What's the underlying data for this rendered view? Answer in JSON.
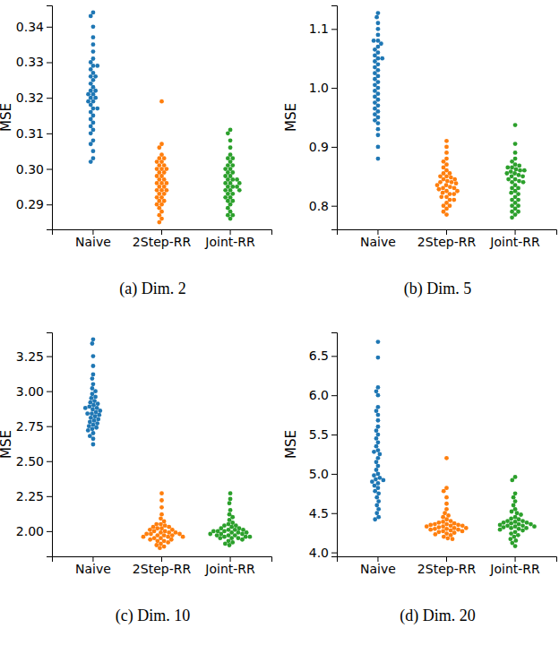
{
  "chart_data": [
    {
      "type": "swarm",
      "title": "(a) Dim. 2",
      "y_label": "MSE",
      "ylim": [
        0.283,
        0.346
      ],
      "yticks": [
        0.29,
        {
          "value": 0.3,
          "label": "0.30"
        },
        0.31,
        0.32,
        0.33,
        0.34
      ],
      "series": [
        {
          "name": "Naive",
          "color": "#1f77b4",
          "values": [
            0.344,
            0.343,
            0.34,
            0.337,
            0.335,
            0.333,
            0.331,
            0.33,
            0.329,
            0.329,
            0.328,
            0.327,
            0.326,
            0.326,
            0.325,
            0.324,
            0.323,
            0.322,
            0.321,
            0.321,
            0.32,
            0.32,
            0.319,
            0.319,
            0.318,
            0.317,
            0.317,
            0.316,
            0.315,
            0.314,
            0.313,
            0.312,
            0.311,
            0.31,
            0.308,
            0.307,
            0.305,
            0.303,
            0.302,
            0.322
          ]
        },
        {
          "name": "2Step-RR",
          "color": "#ff7f0e",
          "values": [
            0.319,
            0.307,
            0.306,
            0.304,
            0.303,
            0.302,
            0.302,
            0.301,
            0.301,
            0.3,
            0.3,
            0.299,
            0.299,
            0.298,
            0.297,
            0.297,
            0.296,
            0.296,
            0.295,
            0.295,
            0.294,
            0.294,
            0.293,
            0.293,
            0.292,
            0.292,
            0.291,
            0.291,
            0.29,
            0.29,
            0.289,
            0.288,
            0.287,
            0.286,
            0.285,
            0.298,
            0.296,
            0.294,
            0.3,
            0.303
          ]
        },
        {
          "name": "Joint-RR",
          "color": "#2ca02c",
          "values": [
            0.311,
            0.31,
            0.308,
            0.306,
            0.304,
            0.303,
            0.303,
            0.302,
            0.301,
            0.301,
            0.3,
            0.3,
            0.299,
            0.299,
            0.298,
            0.298,
            0.297,
            0.297,
            0.296,
            0.296,
            0.295,
            0.295,
            0.294,
            0.294,
            0.293,
            0.293,
            0.292,
            0.292,
            0.291,
            0.291,
            0.29,
            0.289,
            0.288,
            0.287,
            0.287,
            0.286,
            0.296,
            0.297,
            0.295,
            0.294
          ]
        }
      ]
    },
    {
      "type": "swarm",
      "title": "(b) Dim. 5",
      "y_label": "MSE",
      "ylim": [
        0.76,
        1.14
      ],
      "yticks": [
        0.8,
        0.9,
        {
          "value": 1,
          "label": "1.0"
        },
        1.1
      ],
      "series": [
        {
          "name": "Naive",
          "color": "#1f77b4",
          "values": [
            1.127,
            1.12,
            1.11,
            1.1,
            1.09,
            1.08,
            1.08,
            1.075,
            1.07,
            1.065,
            1.06,
            1.055,
            1.05,
            1.05,
            1.045,
            1.04,
            1.035,
            1.03,
            1.02,
            1.01,
            1.005,
            1.0,
            0.995,
            0.99,
            0.985,
            0.98,
            0.975,
            0.97,
            0.965,
            0.96,
            0.955,
            0.95,
            0.945,
            0.94,
            0.93,
            0.92,
            0.9,
            0.88,
            1.025,
            1.015
          ]
        },
        {
          "name": "2Step-RR",
          "color": "#ff7f0e",
          "values": [
            0.91,
            0.9,
            0.89,
            0.88,
            0.875,
            0.87,
            0.865,
            0.86,
            0.855,
            0.855,
            0.85,
            0.85,
            0.845,
            0.845,
            0.84,
            0.84,
            0.835,
            0.835,
            0.83,
            0.83,
            0.825,
            0.825,
            0.82,
            0.82,
            0.815,
            0.815,
            0.81,
            0.81,
            0.805,
            0.8,
            0.8,
            0.795,
            0.79,
            0.785,
            0.842,
            0.838,
            0.828,
            0.822,
            0.848,
            0.832
          ]
        },
        {
          "name": "Joint-RR",
          "color": "#2ca02c",
          "values": [
            0.937,
            0.905,
            0.89,
            0.88,
            0.875,
            0.87,
            0.865,
            0.865,
            0.86,
            0.86,
            0.855,
            0.855,
            0.85,
            0.85,
            0.845,
            0.845,
            0.84,
            0.84,
            0.835,
            0.83,
            0.83,
            0.825,
            0.82,
            0.815,
            0.81,
            0.81,
            0.805,
            0.8,
            0.8,
            0.795,
            0.79,
            0.79,
            0.785,
            0.78,
            0.862,
            0.858,
            0.852,
            0.842,
            0.868,
            0.822
          ]
        }
      ]
    },
    {
      "type": "swarm",
      "title": "(c) Dim. 10",
      "y_label": "MSE",
      "ylim": [
        1.82,
        3.42
      ],
      "yticks": [
        {
          "value": 2,
          "label": "2.00"
        },
        2.25,
        {
          "value": 2.5,
          "label": "2.50"
        },
        2.75,
        {
          "value": 3,
          "label": "3.00"
        },
        3.25
      ],
      "series": [
        {
          "name": "Naive",
          "color": "#1f77b4",
          "values": [
            3.37,
            3.34,
            3.25,
            3.18,
            3.12,
            3.09,
            3.05,
            3.02,
            3.0,
            2.98,
            2.96,
            2.95,
            2.93,
            2.92,
            2.91,
            2.9,
            2.89,
            2.88,
            2.87,
            2.86,
            2.85,
            2.84,
            2.83,
            2.82,
            2.81,
            2.8,
            2.79,
            2.78,
            2.77,
            2.76,
            2.75,
            2.74,
            2.73,
            2.72,
            2.7,
            2.68,
            2.66,
            2.62,
            2.88,
            2.84
          ]
        },
        {
          "name": "2Step-RR",
          "color": "#ff7f0e",
          "values": [
            2.27,
            2.22,
            2.17,
            2.12,
            2.09,
            2.07,
            2.05,
            2.04,
            2.03,
            2.02,
            2.01,
            2.0,
            2.0,
            1.99,
            1.99,
            1.98,
            1.98,
            1.97,
            1.97,
            1.96,
            1.96,
            1.95,
            1.95,
            1.94,
            1.94,
            1.93,
            1.92,
            1.91,
            1.9,
            1.89,
            1.88,
            2.01,
            1.99,
            1.97,
            2.03,
            1.96,
            1.98,
            2.05,
            1.93,
            2.02
          ]
        },
        {
          "name": "Joint-RR",
          "color": "#2ca02c",
          "values": [
            2.27,
            2.23,
            2.2,
            2.15,
            2.12,
            2.1,
            2.08,
            2.06,
            2.05,
            2.04,
            2.03,
            2.02,
            2.01,
            2.01,
            2.0,
            2.0,
            1.99,
            1.99,
            1.98,
            1.98,
            1.97,
            1.97,
            1.96,
            1.96,
            1.95,
            1.95,
            1.94,
            1.93,
            1.92,
            1.91,
            1.9,
            2.0,
            1.98,
            2.02,
            1.96,
            2.04,
            1.99,
            1.97,
            2.01,
            1.95
          ]
        }
      ]
    },
    {
      "type": "swarm",
      "title": "(d) Dim. 20",
      "y_label": "MSE",
      "ylim": [
        3.95,
        6.8
      ],
      "yticks": [
        {
          "value": 4,
          "label": "4.0"
        },
        4.5,
        {
          "value": 5,
          "label": "5.0"
        },
        5.5,
        {
          "value": 6,
          "label": "6.0"
        },
        6.5
      ],
      "series": [
        {
          "name": "Naive",
          "color": "#1f77b4",
          "values": [
            6.68,
            6.48,
            6.1,
            6.05,
            6.0,
            5.85,
            5.8,
            5.75,
            5.68,
            5.6,
            5.55,
            5.5,
            5.45,
            5.4,
            5.35,
            5.3,
            5.25,
            5.2,
            5.15,
            5.1,
            5.05,
            5.0,
            4.98,
            4.95,
            4.92,
            4.9,
            4.88,
            4.85,
            4.82,
            4.78,
            4.75,
            4.7,
            4.65,
            4.6,
            4.55,
            4.5,
            4.45,
            4.42,
            5.28,
            4.93
          ]
        },
        {
          "name": "2Step-RR",
          "color": "#ff7f0e",
          "values": [
            5.2,
            4.82,
            4.78,
            4.7,
            4.62,
            4.55,
            4.5,
            4.47,
            4.45,
            4.42,
            4.4,
            4.38,
            4.37,
            4.36,
            4.35,
            4.34,
            4.33,
            4.32,
            4.31,
            4.3,
            4.29,
            4.28,
            4.27,
            4.26,
            4.25,
            4.24,
            4.23,
            4.22,
            4.2,
            4.18,
            4.17,
            4.36,
            4.34,
            4.31,
            4.29,
            4.39,
            4.33,
            4.3,
            4.27,
            4.35
          ]
        },
        {
          "name": "Joint-RR",
          "color": "#2ca02c",
          "values": [
            4.96,
            4.92,
            4.75,
            4.7,
            4.65,
            4.6,
            4.55,
            4.52,
            4.5,
            4.48,
            4.45,
            4.43,
            4.42,
            4.4,
            4.39,
            4.38,
            4.37,
            4.36,
            4.35,
            4.34,
            4.33,
            4.32,
            4.31,
            4.3,
            4.28,
            4.26,
            4.24,
            4.22,
            4.2,
            4.17,
            4.15,
            4.12,
            4.08,
            4.36,
            4.34,
            4.31,
            4.38,
            4.29,
            4.33,
            4.4
          ]
        }
      ]
    }
  ]
}
